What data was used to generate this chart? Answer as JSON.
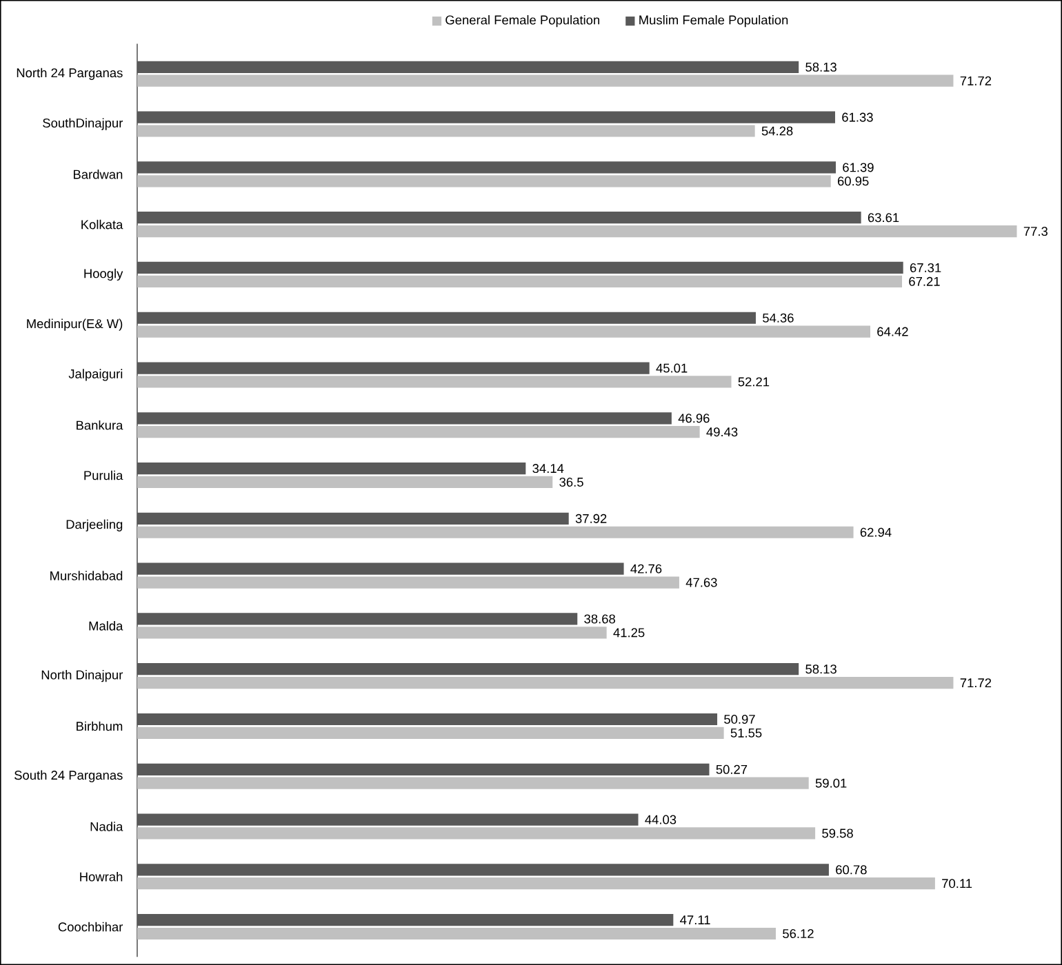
{
  "chart_data": {
    "type": "bar",
    "orientation": "horizontal",
    "categories": [
      "North 24 Parganas",
      "SouthDinajpur",
      "Bardwan",
      "Kolkata",
      "Hoogly",
      "Medinipur(E& W)",
      "Jalpaiguri",
      "Bankura",
      "Purulia",
      "Darjeeling",
      "Murshidabad",
      "Malda",
      "North Dinajpur",
      "Birbhum",
      "South 24 Parganas",
      "Nadia",
      "Howrah",
      "Coochbihar"
    ],
    "series": [
      {
        "name": "General Female Population",
        "color": "#c0c0c0",
        "values": [
          71.72,
          54.28,
          60.95,
          77.3,
          67.21,
          64.42,
          52.21,
          49.43,
          36.5,
          62.94,
          47.63,
          41.25,
          71.72,
          51.55,
          59.01,
          59.58,
          70.11,
          56.12
        ]
      },
      {
        "name": "Muslim Female Population",
        "color": "#595959",
        "values": [
          58.13,
          61.33,
          61.39,
          63.61,
          67.31,
          54.36,
          45.01,
          46.96,
          34.14,
          37.92,
          42.76,
          38.68,
          58.13,
          50.97,
          50.27,
          44.03,
          60.78,
          47.11
        ]
      }
    ],
    "data_labels": true,
    "legend": "top",
    "tick_labels": "y"
  }
}
